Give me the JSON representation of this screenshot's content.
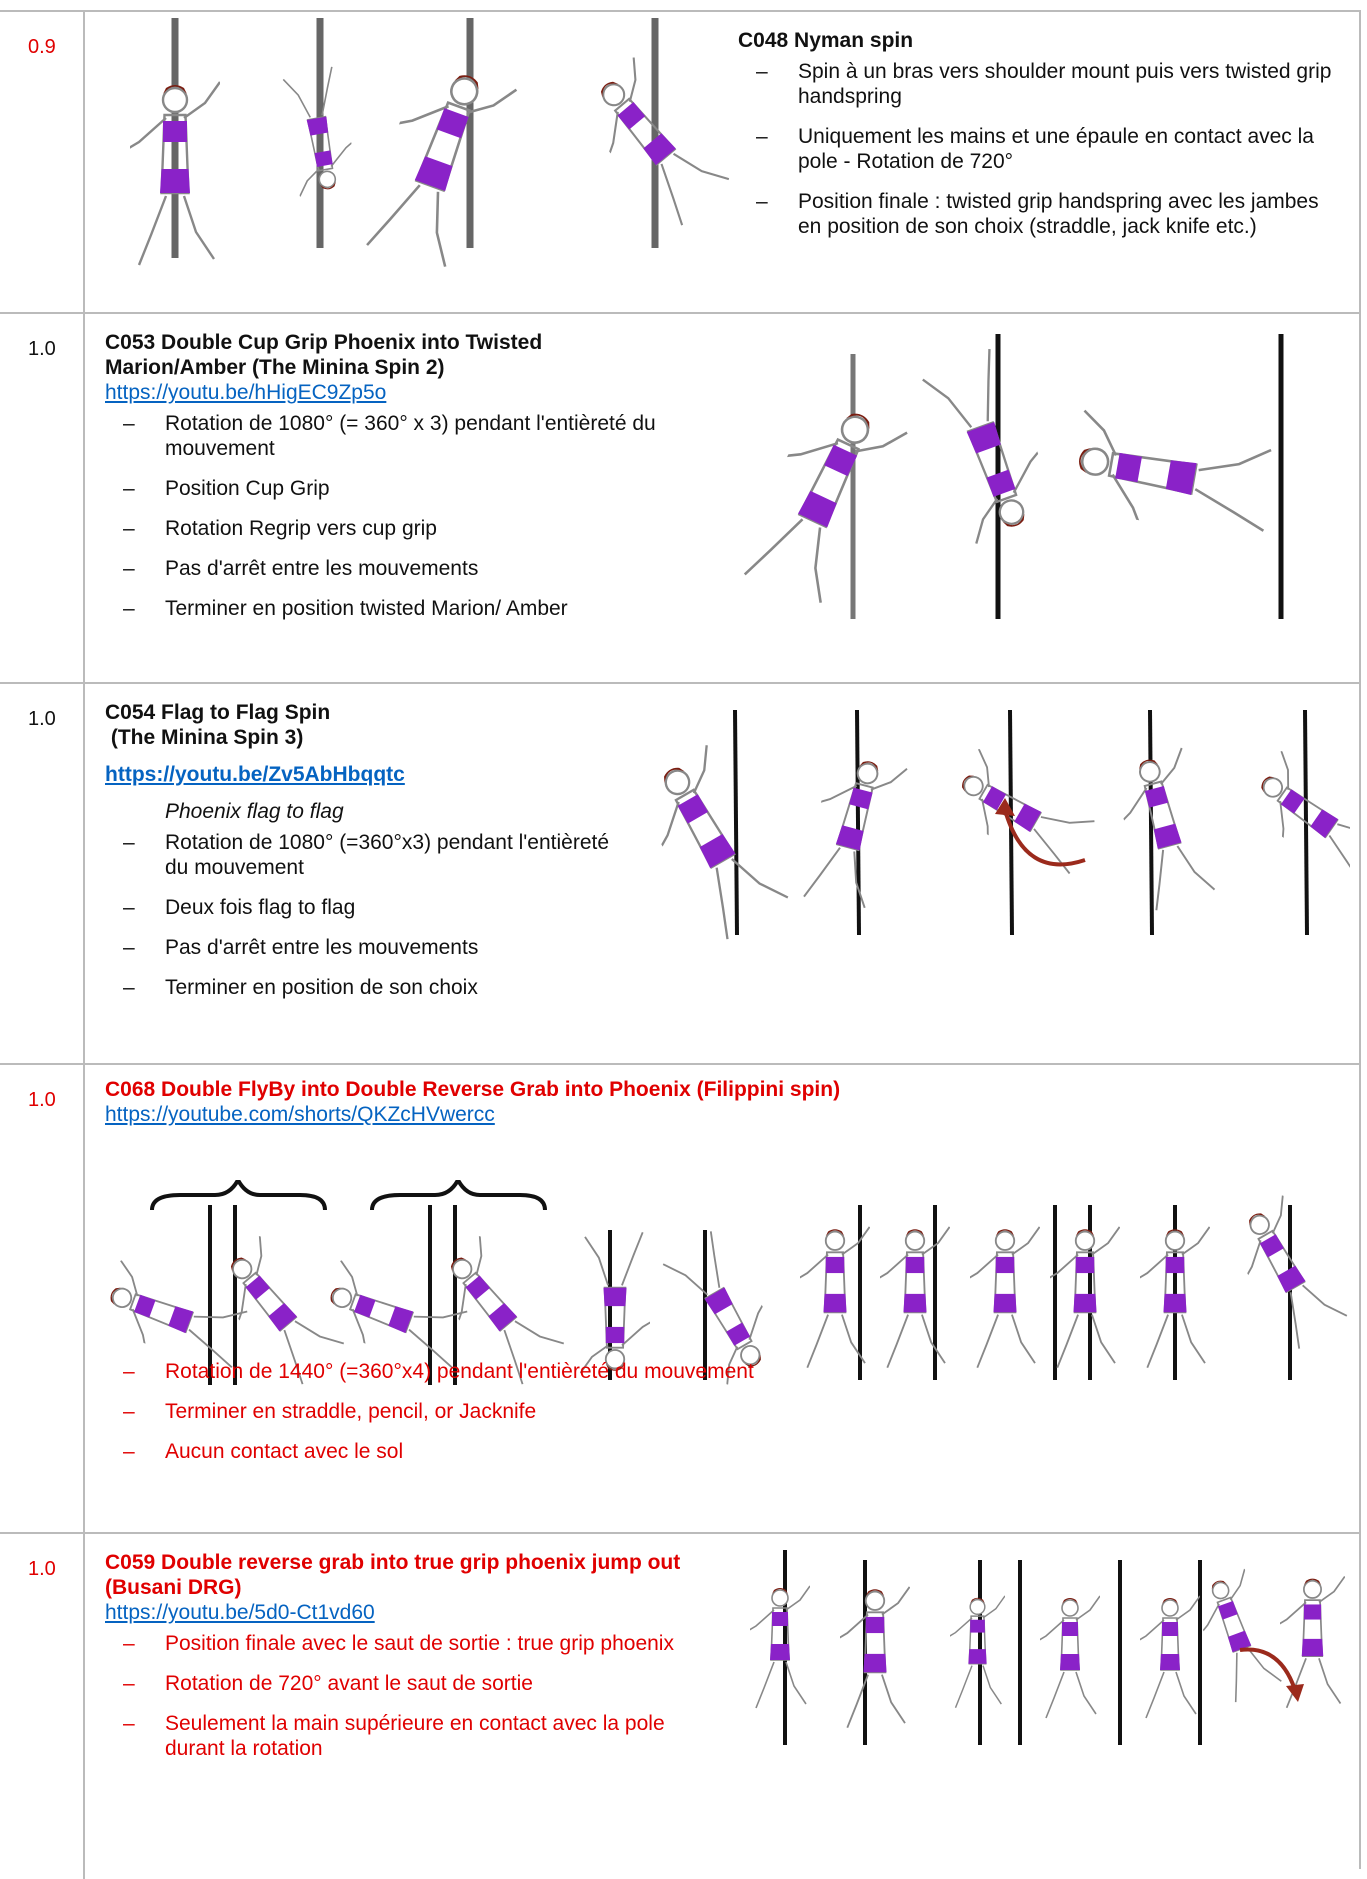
{
  "rows": [
    {
      "score": "0.9",
      "title": [
        "C048 Nyman spin"
      ],
      "items": [
        "Spin à un bras vers shoulder mount puis vers twisted grip handspring",
        "Uniquement les mains et une épaule en contact avec la pole - Rotation de 720°",
        "Position finale : twisted grip handspring avec les jambes en position de son choix (straddle, jack knife etc.)"
      ]
    },
    {
      "score": "1.0",
      "title": [
        "C053 Double Cup Grip Phoenix into Twisted Marion/Amber (The Minina Spin 2)"
      ],
      "link": "https://youtu.be/hHigEC9Zp5o",
      "items": [
        "Rotation de 1080° (= 360° x 3) pendant l'entièreté du mouvement",
        "Position Cup Grip",
        "Rotation Regrip vers cup grip",
        "Pas d'arrêt entre les mouvements",
        "Terminer en position twisted Marion/ Amber"
      ]
    },
    {
      "score": "1.0",
      "title": [
        "C054 Flag to Flag Spin",
        " (The Minina Spin 3)"
      ],
      "link": "https://youtu.be/Zv5AbHbqqtc",
      "subtitle": "Phoenix flag to flag",
      "items": [
        "Rotation de 1080° (=360°x3) pendant l'entièreté du mouvement",
        "Deux fois flag to flag",
        "Pas d'arrêt entre les mouvements",
        "Terminer en position de son choix"
      ]
    },
    {
      "score": "1.0",
      "title": [
        "C068 Double FlyBy into Double Reverse Grab into Phoenix (Filippini spin)"
      ],
      "link": "https://youtube.com/shorts/QKZcHVwercc",
      "items": [
        "Rotation de 1440° (=360°x4) pendant l'entièreté du mouvement",
        "Terminer en straddle, pencil, or Jacknife",
        "Aucun contact avec le sol"
      ]
    },
    {
      "score": "1.0",
      "title": [
        "C059 Double reverse grab into true grip phoenix jump out (Busani DRG)"
      ],
      "link": "https://youtu.be/5d0-Ct1vd60",
      "items": [
        "Position finale avec le saut de sortie : true grip phoenix",
        "Rotation de 720° avant le saut de sortie",
        "Seulement la main supérieure en contact avec la pole durant la rotation"
      ]
    }
  ]
}
